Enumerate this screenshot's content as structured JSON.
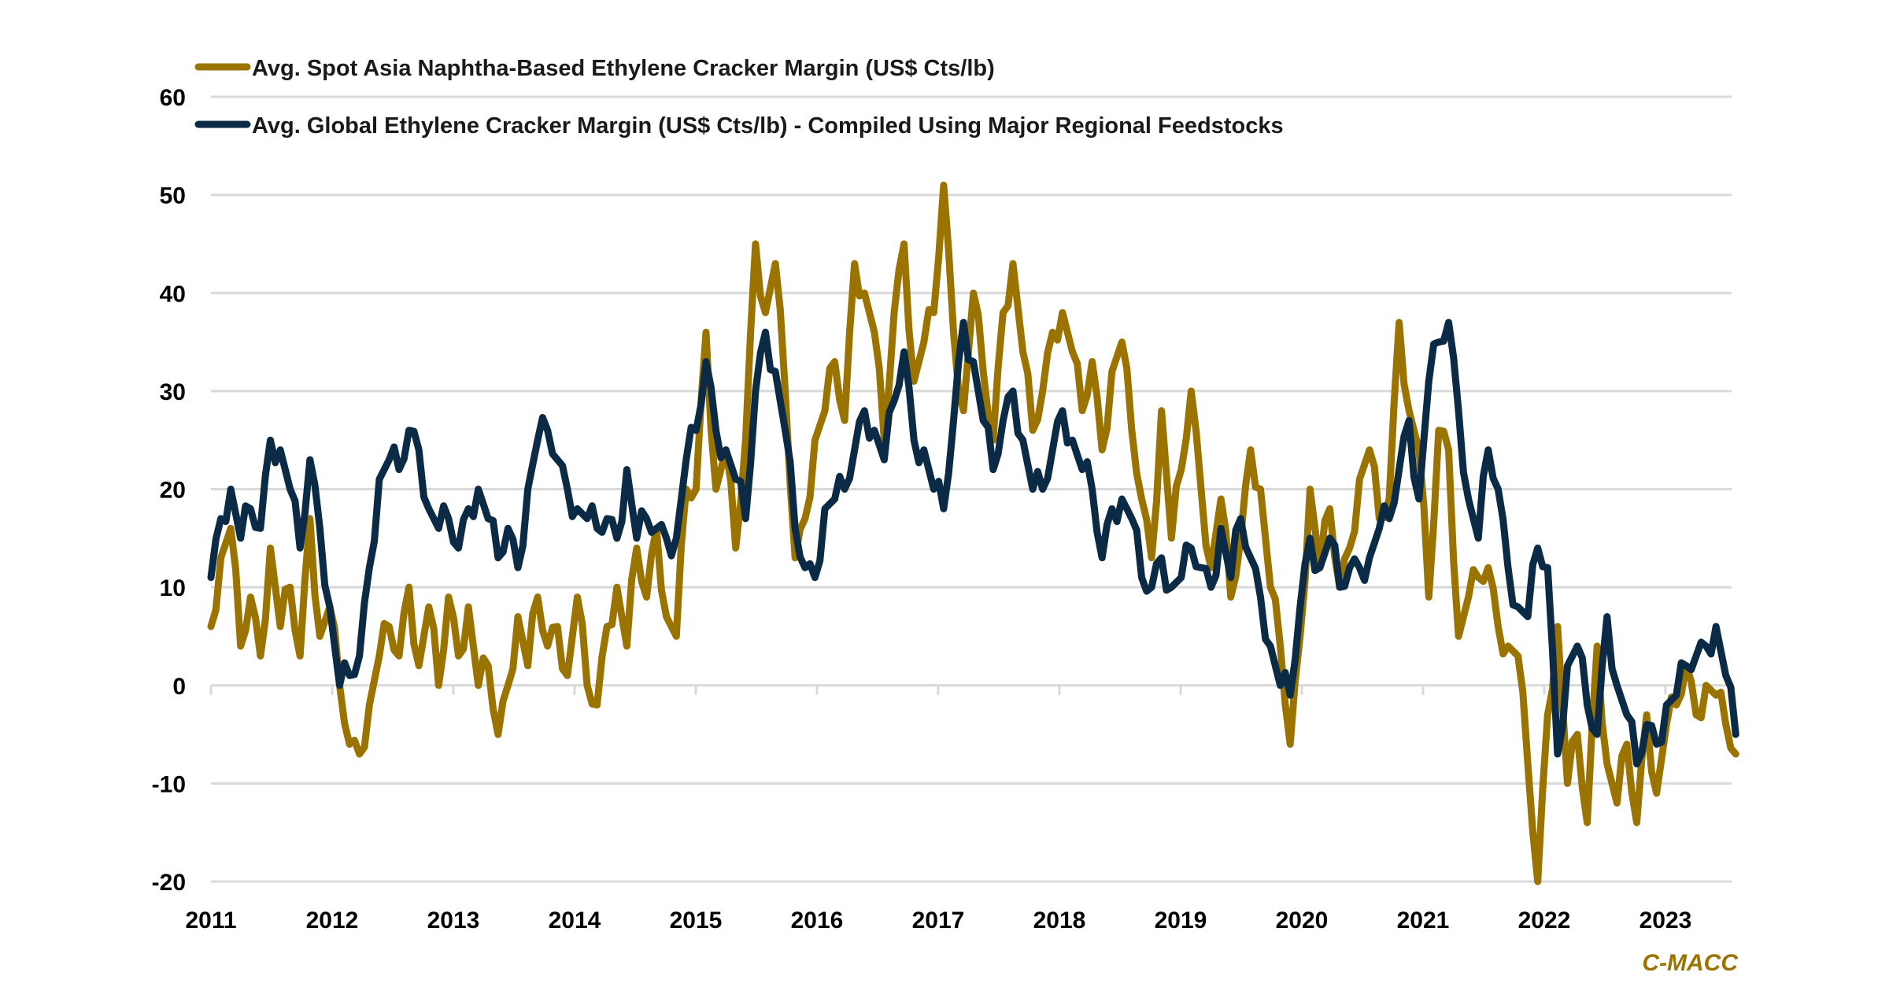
{
  "chart_data": {
    "type": "line",
    "title": "",
    "xlabel": "",
    "ylabel": "",
    "ylim": [
      -20,
      60
    ],
    "yticks": [
      -20,
      -10,
      0,
      10,
      20,
      30,
      40,
      50,
      60
    ],
    "ytick_labels": [
      "-20",
      "-10",
      "0",
      "10",
      "20",
      "30",
      "40",
      "50",
      "60"
    ],
    "xlim": [
      2011.0,
      2023.58
    ],
    "xticks": [
      2011,
      2012,
      2013,
      2014,
      2015,
      2016,
      2017,
      2018,
      2019,
      2020,
      2021,
      2022,
      2023
    ],
    "xtick_labels": [
      "2011",
      "2012",
      "2013",
      "2014",
      "2015",
      "2016",
      "2017",
      "2018",
      "2019",
      "2020",
      "2021",
      "2022",
      "2023"
    ],
    "grid": "horizontal",
    "legend_position": "top-left",
    "x_start": 2011.0,
    "x_step_years": 0.08333,
    "series": [
      {
        "name": "Avg. Spot Asia Naphtha-Based Ethylene Cracker Margin (US$ Cts/lb)",
        "color": "#9A7300",
        "values": [
          6,
          13,
          16,
          4,
          9,
          3,
          14,
          6,
          10,
          3,
          17,
          5,
          8,
          0,
          -6,
          -7,
          -2,
          3,
          6,
          3,
          10,
          2,
          8,
          0,
          9,
          3,
          8,
          0,
          2,
          -5,
          0,
          7,
          2,
          9,
          4,
          6,
          1,
          9,
          0,
          -2,
          6,
          10,
          4,
          14,
          9,
          16,
          7,
          5,
          20,
          20,
          36,
          20,
          24,
          14,
          25,
          45,
          38,
          43,
          30,
          13,
          17,
          25,
          28,
          33,
          27,
          43,
          40,
          36,
          25,
          38,
          45,
          31,
          35,
          38,
          51,
          36,
          28,
          40,
          32,
          25,
          38,
          43,
          34,
          26,
          30,
          36,
          38,
          34,
          28,
          33,
          24,
          32,
          35,
          26,
          19,
          13,
          28,
          15,
          22,
          30,
          20,
          12,
          19,
          9,
          15,
          24,
          20,
          10,
          4,
          -6,
          5,
          20,
          12,
          18,
          10,
          14,
          21,
          24,
          17,
          19,
          37,
          28,
          24,
          9,
          26,
          24,
          5,
          9,
          11,
          12,
          6,
          4,
          3,
          -8,
          -20,
          -3,
          6,
          -10,
          -5,
          -14,
          4,
          -8,
          -12,
          -6,
          -14,
          -3,
          -11,
          -4,
          -2,
          2,
          -3,
          0,
          -1,
          -4,
          -7
        ]
      },
      {
        "name": "Avg. Global Ethylene Cracker Margin (US$ Cts/lb) - Compiled Using Major Regional Feedstocks",
        "color": "#0A2A45",
        "values": [
          11,
          17,
          20,
          15,
          18,
          16,
          25,
          24,
          20,
          14,
          23,
          16,
          8,
          0,
          1,
          3,
          12,
          21,
          23,
          22,
          26,
          24,
          18,
          16,
          17,
          14,
          18,
          20,
          17,
          13,
          16,
          12,
          20,
          25,
          26,
          23,
          20,
          18,
          17,
          16,
          17,
          15,
          22,
          15,
          17,
          16,
          15,
          15,
          23,
          26,
          33,
          26,
          24,
          21,
          17,
          30,
          36,
          32,
          26,
          16,
          12,
          11,
          18,
          19,
          20,
          24,
          28,
          26,
          23,
          29,
          34,
          25,
          24,
          20,
          18,
          27,
          37,
          33,
          27,
          22,
          27,
          30,
          25,
          20,
          20,
          24,
          28,
          25,
          22,
          20,
          13,
          18,
          19,
          17,
          11,
          10,
          13,
          10,
          11,
          14,
          12,
          10,
          16,
          11,
          17,
          13,
          9,
          4,
          0,
          -1,
          8,
          15,
          12,
          15,
          10,
          12,
          12,
          13,
          16,
          17,
          22,
          27,
          19,
          31,
          35,
          37,
          28,
          19,
          15,
          24,
          20,
          12,
          8,
          7,
          14,
          12,
          -7,
          2,
          4,
          -2,
          -5,
          7,
          0,
          -3,
          -8,
          -4,
          -6,
          -2,
          -1,
          2,
          3,
          4,
          6,
          1,
          -5
        ]
      }
    ],
    "legend": [
      "Avg. Spot Asia Naphtha-Based Ethylene Cracker Margin (US$ Cts/lb)",
      "Avg. Global Ethylene Cracker Margin (US$ Cts/lb) - Compiled Using Major Regional Feedstocks"
    ],
    "source": "C-MACC"
  }
}
